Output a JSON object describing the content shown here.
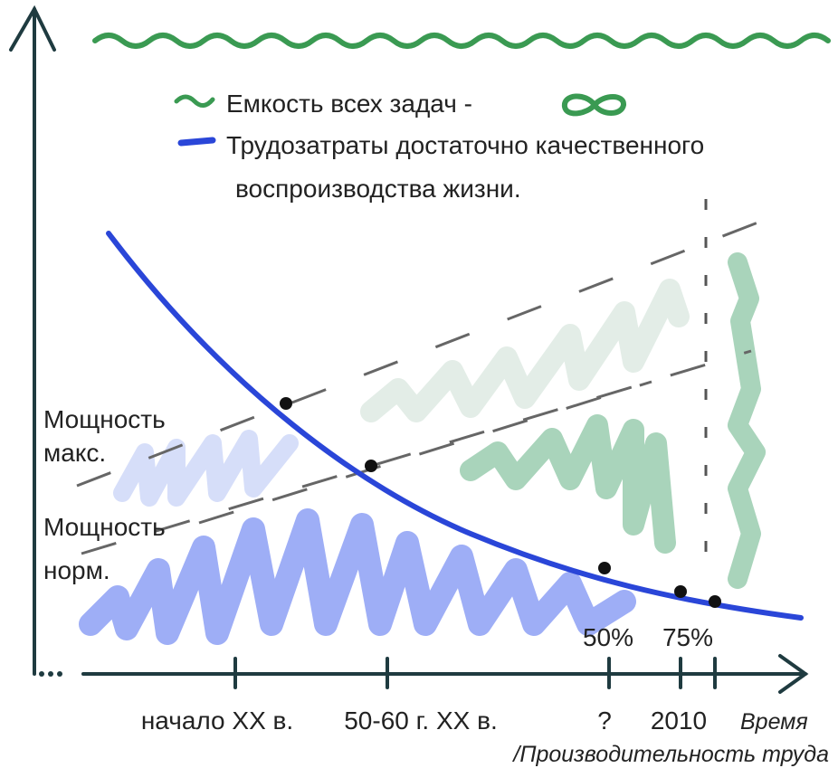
{
  "legend": [
    {
      "lines": [
        "Емкость всех задач  -"
      ]
    },
    {
      "lines": [
        "Трудозатраты достаточно качественного",
        "воспроизводства жизни."
      ]
    }
  ],
  "levels": [
    {
      "lines": [
        "Мощность",
        "макс."
      ]
    },
    {
      "lines": [
        "Мощность",
        "норм."
      ]
    }
  ],
  "markers": [
    "50%",
    "75%"
  ],
  "x_ticks": [
    "начало XX в.",
    "50-60 г. XX в.",
    "?",
    "2010"
  ],
  "axis_title": [
    "Время",
    "/Производительность труда"
  ]
}
